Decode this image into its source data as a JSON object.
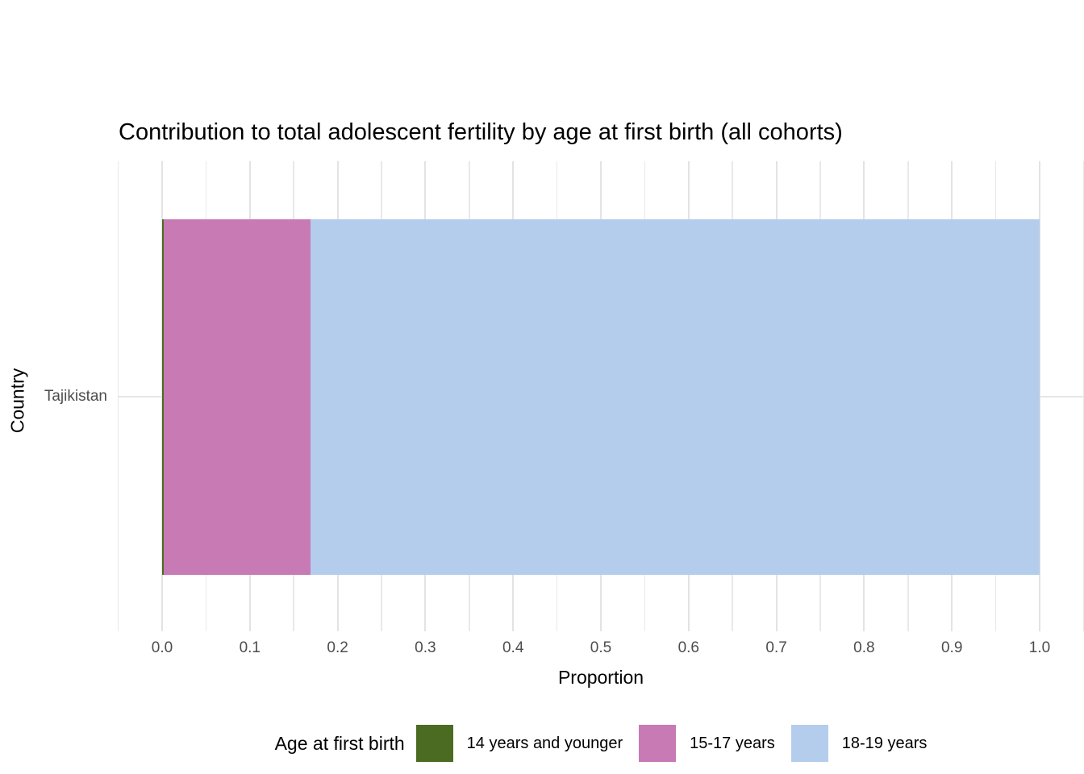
{
  "chart_data": {
    "type": "bar",
    "orientation": "horizontal",
    "stacked": true,
    "title": "Contribution to total adolescent fertility by age at first birth (all cohorts)",
    "xlabel": "Proportion",
    "ylabel": "Country",
    "categories": [
      "Tajikistan"
    ],
    "series": [
      {
        "name": "14 years and younger",
        "values": [
          0.002
        ],
        "color": "#4c6b22"
      },
      {
        "name": "15-17 years",
        "values": [
          0.167
        ],
        "color": "#c87ab5"
      },
      {
        "name": "18-19 years",
        "values": [
          0.831
        ],
        "color": "#b5cdec"
      }
    ],
    "xlim": [
      0.0,
      1.0
    ],
    "x_ticks": [
      "0.0",
      "0.1",
      "0.2",
      "0.3",
      "0.4",
      "0.5",
      "0.6",
      "0.7",
      "0.8",
      "0.9",
      "1.0"
    ],
    "x_tick_values": [
      0.0,
      0.1,
      0.2,
      0.3,
      0.4,
      0.5,
      0.6,
      0.7,
      0.8,
      0.9,
      1.0
    ],
    "grid": "vertical major and minor gridlines, horizontal gridline at category",
    "legend_position": "bottom"
  },
  "legend": {
    "title": "Age at first birth"
  },
  "colors": {
    "background": "#ffffff",
    "grid_major": "#e3e3e3",
    "grid_minor": "#e9e9e9",
    "tick_label": "#4d4d4d",
    "text": "#000000"
  }
}
